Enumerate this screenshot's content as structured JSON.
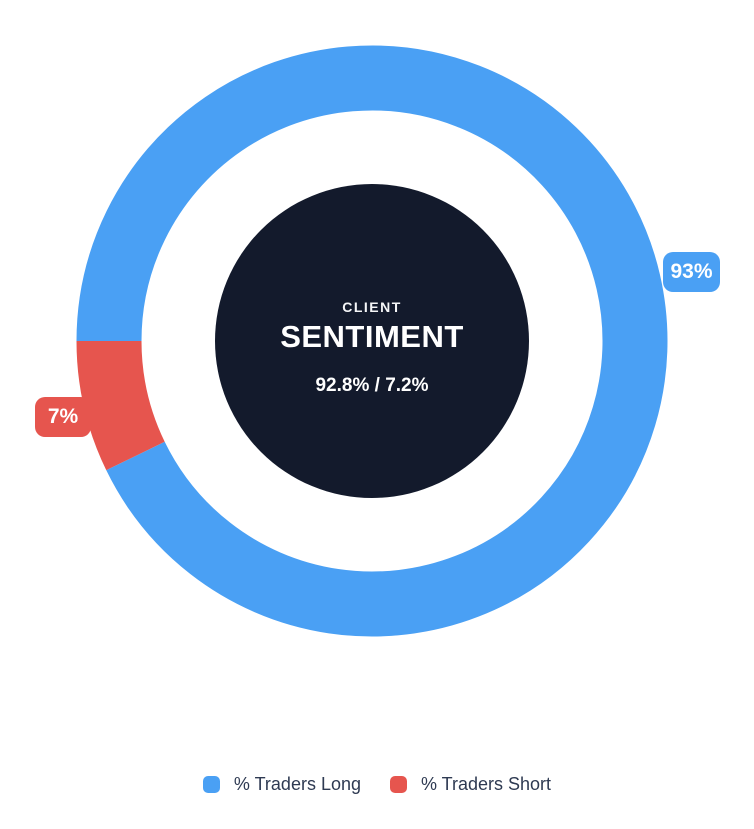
{
  "chart_data": {
    "type": "pie",
    "variant": "donut",
    "title": "CLIENT SENTIMENT",
    "categories": [
      "% Traders Long",
      "% Traders Short"
    ],
    "values": [
      92.8,
      7.2
    ],
    "segments": [
      {
        "id": "long",
        "label": "% Traders Long",
        "value": 92.8,
        "display": "93%",
        "color": "#4AA0F4"
      },
      {
        "id": "short",
        "label": "% Traders Short",
        "value": 7.2,
        "display": "7%",
        "color": "#E6554E"
      }
    ],
    "start_angle_cw_from_top": 270,
    "direction": "clockwise",
    "legend_position": "bottom",
    "center_label": {
      "eyebrow": "CLIENT",
      "title": "SENTIMENT",
      "values": "92.8% / 7.2%"
    },
    "center_disc_color": "#131A2C",
    "center_text_color": "#ffffff",
    "legend_text_color": "#2e3a52",
    "background_color": "#ffffff"
  }
}
